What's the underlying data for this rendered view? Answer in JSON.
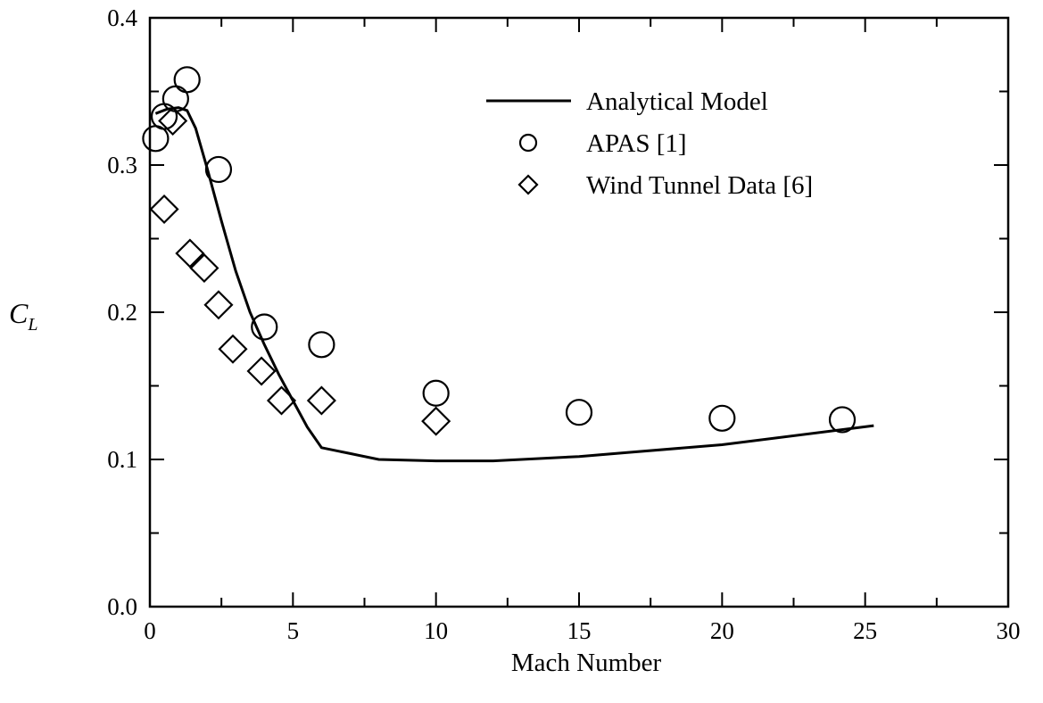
{
  "chart_data": {
    "type": "scatter",
    "xlabel": "Mach Number",
    "ylabel": "C",
    "ylabel_subscript": "L",
    "xlim": [
      0,
      30
    ],
    "ylim": [
      0.0,
      0.4
    ],
    "x_ticks": [
      "0",
      "5",
      "10",
      "15",
      "20",
      "25",
      "30"
    ],
    "y_ticks": [
      "0.0",
      "0.1",
      "0.2",
      "0.3",
      "0.4"
    ],
    "grid": false,
    "legend_position": "top-right",
    "series": [
      {
        "name": "Analytical Model",
        "marker": "line",
        "points": [
          [
            0.2,
            0.335
          ],
          [
            0.6,
            0.338
          ],
          [
            1.0,
            0.339
          ],
          [
            1.3,
            0.337
          ],
          [
            1.6,
            0.325
          ],
          [
            2.0,
            0.298
          ],
          [
            2.5,
            0.262
          ],
          [
            3.0,
            0.228
          ],
          [
            3.5,
            0.2
          ],
          [
            4.0,
            0.178
          ],
          [
            4.5,
            0.158
          ],
          [
            5.0,
            0.14
          ],
          [
            5.5,
            0.122
          ],
          [
            6.0,
            0.108
          ],
          [
            7.0,
            0.104
          ],
          [
            8.0,
            0.1
          ],
          [
            10.0,
            0.099
          ],
          [
            12.0,
            0.099
          ],
          [
            15.0,
            0.102
          ],
          [
            20.0,
            0.11
          ],
          [
            25.3,
            0.123
          ]
        ]
      },
      {
        "name": "APAS [1]",
        "marker": "circle",
        "points": [
          [
            0.2,
            0.318
          ],
          [
            0.5,
            0.333
          ],
          [
            0.9,
            0.345
          ],
          [
            1.3,
            0.358
          ],
          [
            2.4,
            0.297
          ],
          [
            4.0,
            0.19
          ],
          [
            6.0,
            0.178
          ],
          [
            10.0,
            0.145
          ],
          [
            15.0,
            0.132
          ],
          [
            20.0,
            0.128
          ],
          [
            24.2,
            0.127
          ]
        ]
      },
      {
        "name": "Wind Tunnel Data [6]",
        "marker": "diamond",
        "points": [
          [
            0.5,
            0.27
          ],
          [
            0.8,
            0.33
          ],
          [
            1.4,
            0.24
          ],
          [
            1.9,
            0.23
          ],
          [
            2.4,
            0.205
          ],
          [
            2.9,
            0.175
          ],
          [
            3.9,
            0.16
          ],
          [
            4.6,
            0.14
          ],
          [
            6.0,
            0.14
          ],
          [
            10.0,
            0.126
          ]
        ]
      }
    ]
  }
}
